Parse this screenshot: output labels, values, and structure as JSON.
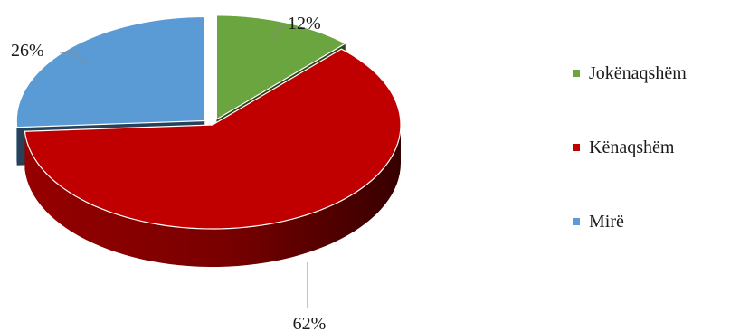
{
  "chart_data": {
    "type": "pie",
    "style": "3d-exploded",
    "title": "",
    "categories": [
      "Jokënaqshëm",
      "Kënaqshëm",
      "Mirë"
    ],
    "values": [
      12,
      62,
      26
    ],
    "labels": [
      "12%",
      "62%",
      "26%"
    ],
    "unit": "%",
    "colors": [
      "#6aa53f",
      "#c00000",
      "#5b9bd5"
    ],
    "legend_position": "right"
  },
  "legend": {
    "items": [
      {
        "label": "Jokënaqshëm",
        "color": "#6aa53f"
      },
      {
        "label": "Kënaqshëm",
        "color": "#c00000"
      },
      {
        "label": "Mirë",
        "color": "#5b9bd5"
      }
    ]
  }
}
